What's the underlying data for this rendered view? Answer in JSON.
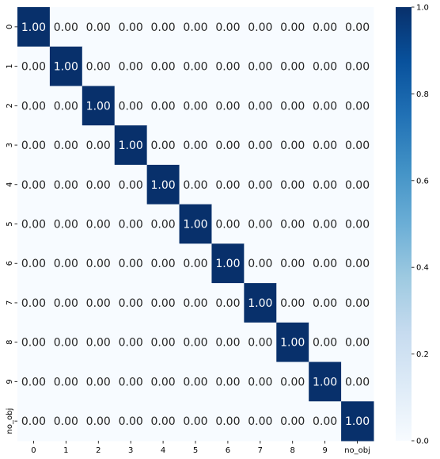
{
  "chart_data": {
    "type": "heatmap",
    "title": "",
    "xlabel": "",
    "ylabel": "",
    "x_categories": [
      "0",
      "1",
      "2",
      "3",
      "4",
      "5",
      "6",
      "7",
      "8",
      "9",
      "no_obj"
    ],
    "y_categories": [
      "0",
      "1",
      "2",
      "3",
      "4",
      "5",
      "6",
      "7",
      "8",
      "9",
      "no_obj"
    ],
    "values": [
      [
        1,
        0,
        0,
        0,
        0,
        0,
        0,
        0,
        0,
        0,
        0
      ],
      [
        0,
        1,
        0,
        0,
        0,
        0,
        0,
        0,
        0,
        0,
        0
      ],
      [
        0,
        0,
        1,
        0,
        0,
        0,
        0,
        0,
        0,
        0,
        0
      ],
      [
        0,
        0,
        0,
        1,
        0,
        0,
        0,
        0,
        0,
        0,
        0
      ],
      [
        0,
        0,
        0,
        0,
        1,
        0,
        0,
        0,
        0,
        0,
        0
      ],
      [
        0,
        0,
        0,
        0,
        0,
        1,
        0,
        0,
        0,
        0,
        0
      ],
      [
        0,
        0,
        0,
        0,
        0,
        0,
        1,
        0,
        0,
        0,
        0
      ],
      [
        0,
        0,
        0,
        0,
        0,
        0,
        0,
        1,
        0,
        0,
        0
      ],
      [
        0,
        0,
        0,
        0,
        0,
        0,
        0,
        0,
        1,
        0,
        0
      ],
      [
        0,
        0,
        0,
        0,
        0,
        0,
        0,
        0,
        0,
        1,
        0
      ],
      [
        0,
        0,
        0,
        0,
        0,
        0,
        0,
        0,
        0,
        0,
        1
      ]
    ],
    "annotation_format": "0.00",
    "colorbar": {
      "range": [
        0.0,
        1.0
      ],
      "ticks": [
        "0.0",
        "0.2",
        "0.4",
        "0.6",
        "0.8",
        "1.0"
      ],
      "colormap": "Blues",
      "low_color": "#f7fbff",
      "high_color": "#08306b"
    },
    "grid": false,
    "legend": "colorbar-right"
  }
}
